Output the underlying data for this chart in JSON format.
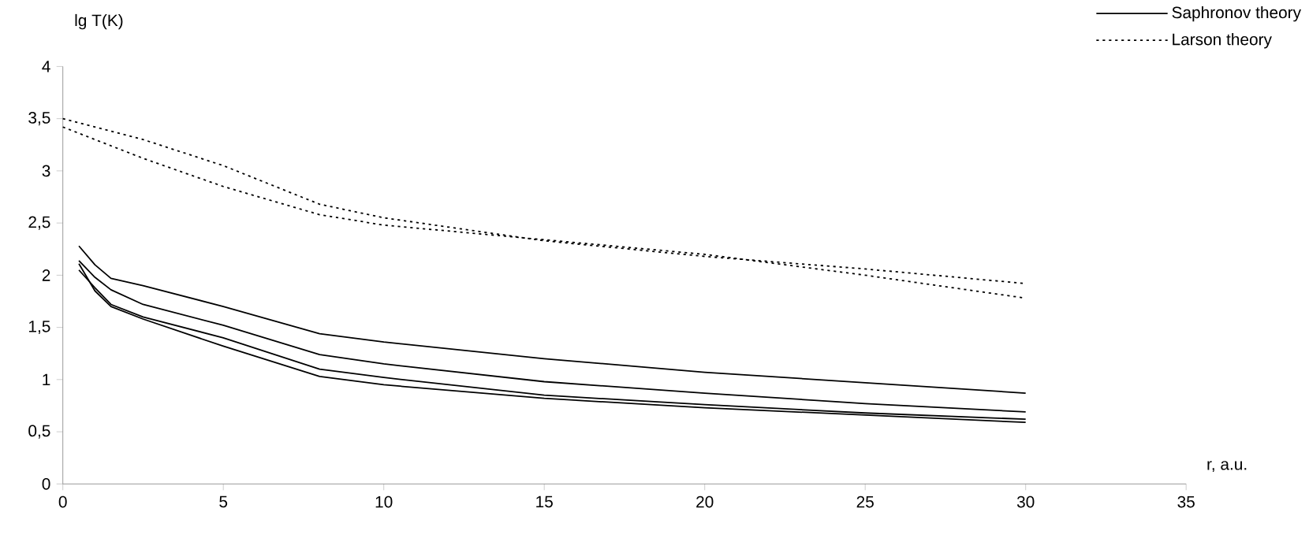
{
  "chart_data": {
    "type": "line",
    "xlabel": "r, a.u.",
    "ylabel": "lg T(K)",
    "xlim": [
      0,
      35
    ],
    "xticks": [
      0,
      5,
      10,
      15,
      20,
      25,
      30,
      35
    ],
    "ylim": [
      0,
      4
    ],
    "yticks": [
      0,
      {
        "value": 0.5,
        "label": "0,5"
      },
      1,
      {
        "value": 1.5,
        "label": "1,5"
      },
      2,
      {
        "value": 2.5,
        "label": "2,5"
      },
      3,
      {
        "value": 3.5,
        "label": "3,5"
      },
      4
    ],
    "legend": "top right",
    "marker": "none",
    "series": [
      {
        "name": "Saphronov theory",
        "color": "#000000",
        "line_style": "solid",
        "x": [
          0.5,
          1,
          1.5,
          2.5,
          5,
          8,
          10,
          15,
          20,
          25,
          30
        ],
        "values": [
          2.28,
          2.1,
          1.97,
          1.9,
          1.7,
          1.44,
          1.36,
          1.2,
          1.07,
          0.97,
          0.87
        ]
      },
      {
        "color": "#000000",
        "line_style": "solid",
        "x": [
          0.5,
          1,
          1.5,
          2.5,
          5,
          8,
          10,
          15,
          20,
          25,
          30
        ],
        "values": [
          2.14,
          1.98,
          1.86,
          1.72,
          1.52,
          1.24,
          1.15,
          0.98,
          0.87,
          0.77,
          0.69
        ]
      },
      {
        "color": "#000000",
        "line_style": "solid",
        "x": [
          0.5,
          1,
          1.5,
          2.5,
          5,
          8,
          10,
          15,
          20,
          25,
          30
        ],
        "values": [
          2.05,
          1.88,
          1.72,
          1.6,
          1.4,
          1.1,
          1.02,
          0.85,
          0.76,
          0.68,
          0.62
        ]
      },
      {
        "color": "#000000",
        "line_style": "solid",
        "x": [
          0.5,
          1,
          1.5,
          2.5,
          5,
          8,
          10,
          15,
          20,
          25,
          30
        ],
        "values": [
          2.11,
          1.85,
          1.7,
          1.58,
          1.32,
          1.03,
          0.95,
          0.82,
          0.73,
          0.66,
          0.59
        ]
      },
      {
        "name": "Larson theory",
        "color": "#000000",
        "line_style": "dotted",
        "x": [
          0,
          2.5,
          5,
          8,
          10,
          15,
          20,
          25,
          30
        ],
        "values": [
          3.5,
          3.3,
          3.05,
          2.68,
          2.55,
          2.33,
          2.18,
          2.06,
          1.92
        ]
      },
      {
        "color": "#000000",
        "line_style": "dotted",
        "x": [
          0,
          2.5,
          5,
          8,
          10,
          15,
          20,
          25,
          30
        ],
        "values": [
          3.42,
          3.12,
          2.85,
          2.58,
          2.48,
          2.34,
          2.2,
          2.0,
          1.78
        ]
      }
    ]
  }
}
